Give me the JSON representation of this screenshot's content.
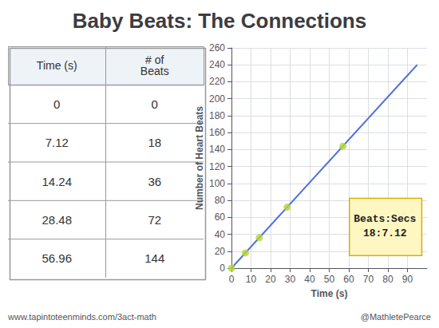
{
  "chart_data": [
    {
      "type": "table",
      "columns": [
        "Time (s)",
        "# of\nBeats"
      ],
      "rows": [
        [
          0,
          0
        ],
        [
          7.12,
          18
        ],
        [
          14.24,
          36
        ],
        [
          28.48,
          72
        ],
        [
          56.96,
          144
        ]
      ]
    },
    {
      "type": "scatter",
      "title": "Baby Beats: The Connections",
      "xlabel": "Time (s)",
      "ylabel": "Number of Heart Beats",
      "series": [
        {
          "type": "line",
          "x": [
            0,
            95
          ],
          "values": [
            0,
            240.16853932584266
          ]
        },
        {
          "type": "scatter",
          "x": [
            0,
            7.12,
            14.24,
            28.48,
            56.96
          ],
          "values": [
            0,
            18,
            36,
            72,
            144
          ]
        }
      ],
      "xlim": [
        0,
        100
      ],
      "ylim": [
        0,
        260
      ],
      "xticks": [
        0,
        10,
        20,
        30,
        40,
        50,
        60,
        70,
        80,
        90
      ],
      "yticks": [
        0,
        20,
        40,
        60,
        80,
        100,
        120,
        140,
        160,
        180,
        200,
        220,
        240,
        260
      ],
      "grid": true,
      "annotations": [
        "Beats:Secs\n18:7.12"
      ],
      "footer": [
        "www.tapintoteenminds.com/3act-math",
        "@MathletePearce"
      ]
    }
  ]
}
